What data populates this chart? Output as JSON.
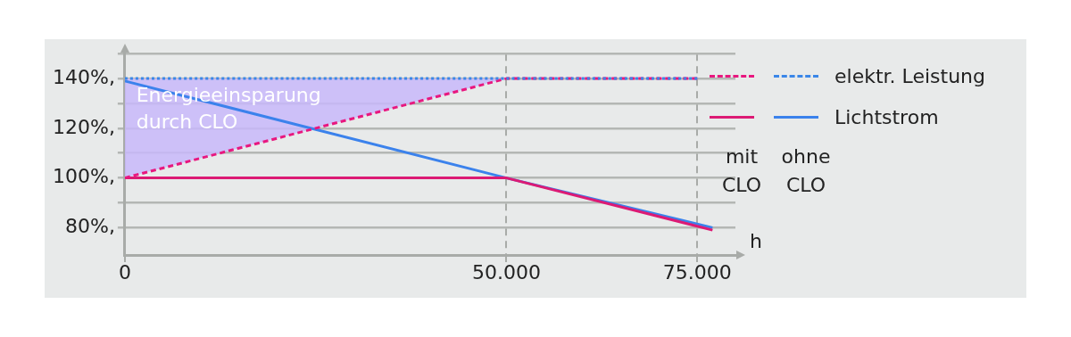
{
  "chart_data": {
    "type": "line",
    "xlabel": "h",
    "legend": "right",
    "grid": true,
    "xlim": [
      0,
      80000
    ],
    "xticks": [
      0,
      {
        "value": 50000,
        "label": "50.000"
      },
      {
        "value": 75000,
        "label": "75.000"
      }
    ],
    "ylim": [
      69,
      150
    ],
    "yticks": [
      {
        "value": 80,
        "label": "80%,"
      },
      {
        "value": 90,
        "label": null
      },
      {
        "value": 100,
        "label": "100%,"
      },
      {
        "value": 110,
        "label": null
      },
      {
        "value": 120,
        "label": "120%,"
      },
      {
        "value": 130,
        "label": null
      },
      {
        "value": 140,
        "label": "140%,"
      },
      {
        "value": 150,
        "label": null
      }
    ],
    "series": [
      {
        "color": "#e8177f",
        "line_style": "dashed",
        "x": [
          0,
          50000,
          75000
        ],
        "values": [
          100,
          140,
          140
        ]
      },
      {
        "name": "elektr. Leistung",
        "color": "#3a86e8",
        "line_style": "dotted",
        "x": [
          0,
          50000,
          75000
        ],
        "values": [
          140,
          140,
          140
        ],
        "lower": [
          100,
          140,
          140
        ],
        "upper": [
          140,
          140,
          140
        ]
      },
      {
        "color": "#dc1a74",
        "line_style": "solid",
        "x": [
          0,
          50000,
          77000
        ],
        "values": [
          100,
          100,
          79
        ]
      },
      {
        "name": "Lichtstrom",
        "color": "#3b82ec",
        "line_style": "solid",
        "x": [
          0,
          50000,
          77000
        ],
        "values": [
          139,
          100,
          80
        ]
      }
    ],
    "annotations": [
      {
        "text": "Energieeinsparung durch CLO",
        "x": 800,
        "y": 138.5
      },
      "mit CLO",
      "ohne CLO"
    ]
  }
}
